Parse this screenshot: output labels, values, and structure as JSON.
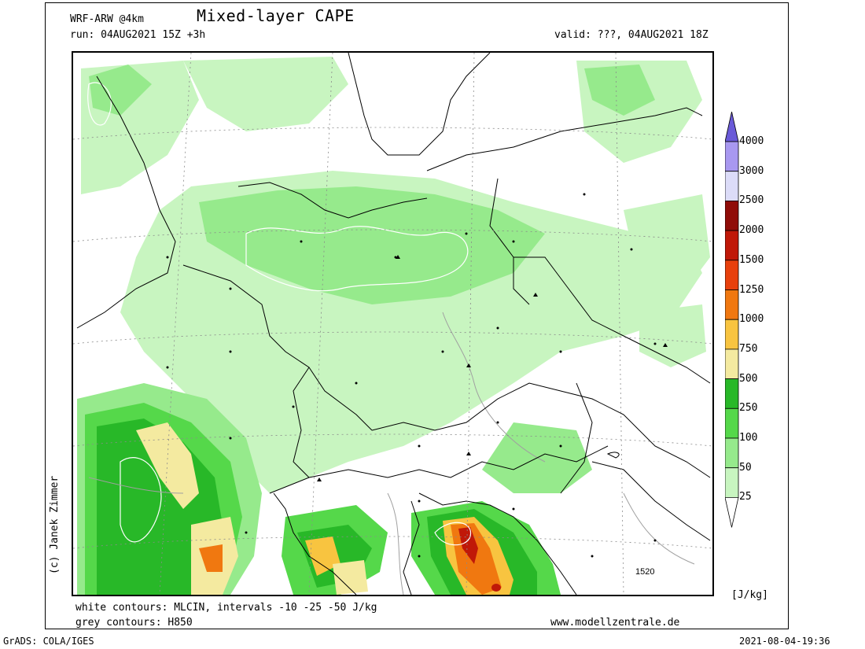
{
  "header": {
    "model": "WRF-ARW @4km",
    "title": "Mixed-layer CAPE",
    "run": "run: 04AUG2021 15Z +3h",
    "valid": "valid: ???, 04AUG2021 18Z"
  },
  "map": {
    "contour_label": "1520"
  },
  "colorbar": {
    "unit": "[J/kg]",
    "levels": [
      "25",
      "50",
      "100",
      "250",
      "500",
      "750",
      "1000",
      "1250",
      "1500",
      "2000",
      "2500",
      "3000",
      "4000"
    ],
    "colors": {
      "below": "#ffffff",
      "c25": "#c8f5c0",
      "c50": "#96ea8c",
      "c100": "#55d84a",
      "c250": "#28b828",
      "c500": "#f4eaa0",
      "c750": "#f8c440",
      "c1000": "#f07810",
      "c1250": "#e8400c",
      "c1500": "#c01808",
      "c2000": "#900c08",
      "c2500": "#dcdcf8",
      "c3000": "#a898f0",
      "c4000": "#6a5ad8"
    }
  },
  "footer": {
    "note1": "white contours: MLCIN, intervals -10 -25 -50 J/kg",
    "note2": "grey contours: H850",
    "site": "www.modellzentrale.de",
    "grads": "GrADS: COLA/IGES",
    "timestamp": "2021-08-04-19:36"
  },
  "credit": "(c) Janek Zimmer"
}
